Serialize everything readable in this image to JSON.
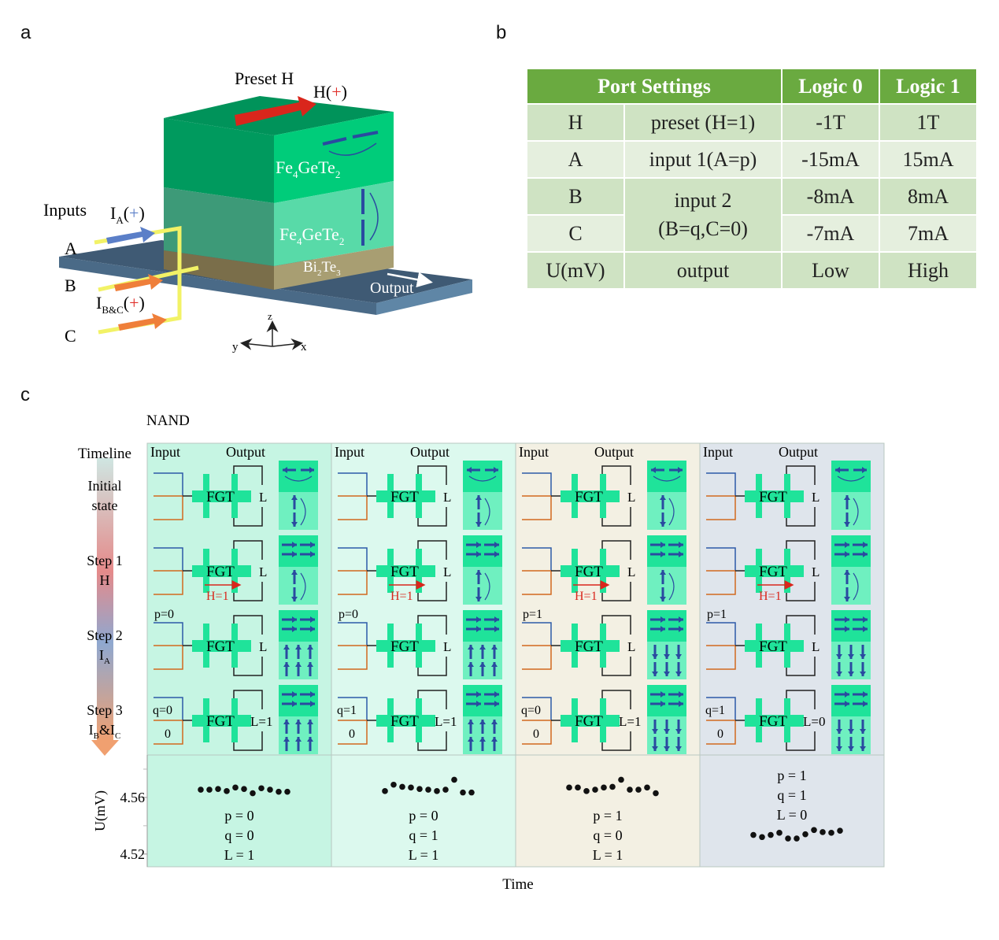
{
  "panels": {
    "a": "a",
    "b": "b",
    "c": "c"
  },
  "device": {
    "preset_label": "Preset H",
    "h_label": "H(",
    "h_sign": "+",
    "h_close": ")",
    "layer_top": "Fe",
    "layer_top_sub1": "4",
    "layer_top_mid": "GeTe",
    "layer_top_sub2": "2",
    "layer_mid": "Fe",
    "layer_mid_sub1": "4",
    "layer_mid_mid": "GeTe",
    "layer_mid_sub2": "2",
    "layer_bottom": "Bi",
    "layer_bottom_sub1": "2",
    "layer_bottom_mid": "Te",
    "layer_bottom_sub2": "3",
    "inputs_label": "Inputs",
    "ia_label": "I",
    "ia_sub": "A",
    "ia_sign": "+",
    "ibc_label": "I",
    "ibc_sub": "B&C",
    "ibc_sign": "+",
    "port_a": "A",
    "port_b": "B",
    "port_c": "C",
    "output_label": "Output",
    "axis_z": "z",
    "axis_y": "y",
    "axis_x": "x",
    "colors": {
      "preset_arrow": "#d9261c",
      "ia_arrow": "#5b7fc8",
      "ibc_arrow": "#ef7f3a",
      "wire": "#f2f266",
      "substrate": "#41607c"
    }
  },
  "table": {
    "headers": [
      "Port Settings",
      "Logic 0",
      "Logic 1"
    ],
    "rows": [
      {
        "port": "H",
        "setting": "preset (H=1)",
        "logic0": "-1T",
        "logic1": "1T"
      },
      {
        "port": "A",
        "setting": "input 1(A=p)",
        "logic0": "-15mA",
        "logic1": "15mA"
      },
      {
        "port": "B",
        "setting": "input 2",
        "logic0": "-8mA",
        "logic1": "8mA"
      },
      {
        "port": "C",
        "setting": "(B=q,C=0)",
        "logic0": "-7mA",
        "logic1": "7mA"
      },
      {
        "port": "U(mV)",
        "setting": "output",
        "logic0": "Low",
        "logic1": "High"
      }
    ],
    "colors": {
      "header": "#6aaa40",
      "row_dark": "#cfe3c3",
      "row_light": "#e5efde"
    }
  },
  "nand": {
    "title": "NAND",
    "timeline_label": "Timeline",
    "steps": [
      {
        "line1": "Initial",
        "line2": "state"
      },
      {
        "line1": "Step 1",
        "line2": "H"
      },
      {
        "line1": "Step 2",
        "line2": "I",
        "line2_sub": "A"
      },
      {
        "line1": "Step 3",
        "line2": "I",
        "line2_sub": "B",
        "line2_mid": "&I",
        "line2_sub2": "C"
      }
    ],
    "input_label": "Input",
    "output_label": "Output",
    "device_label": "FGT",
    "output_low": "L",
    "h_field_label": "H=1",
    "zero_label": "0",
    "columns": [
      {
        "p": "p=0",
        "q": "q=0",
        "out": "L=1",
        "pv": "p = 0",
        "qv": "q = 0",
        "lv": "L = 1",
        "bg": "#c6f5e3",
        "magnet_down": false,
        "final_down": false
      },
      {
        "p": "p=0",
        "q": "q=1",
        "out": "L=1",
        "pv": "p = 0",
        "qv": "q = 1",
        "lv": "L = 1",
        "bg": "#dcf9ee",
        "magnet_down": false,
        "final_down": false
      },
      {
        "p": "p=1",
        "q": "q=0",
        "out": "L=1",
        "pv": "p = 1",
        "qv": "q = 0",
        "lv": "L = 1",
        "bg": "#f3f0e3",
        "magnet_down": true,
        "final_down": true
      },
      {
        "p": "p=1",
        "q": "q=1",
        "out": "L=0",
        "pv": "p = 1",
        "qv": "q = 1",
        "lv": "L = 0",
        "bg": "#dfe5ec",
        "magnet_down": true,
        "final_down": true
      }
    ]
  },
  "chart_data": {
    "type": "scatter",
    "xlabel": "Time",
    "ylabel": "U(mV)",
    "yticks": [
      "4.52",
      "4.56"
    ],
    "ylim": [
      4.511,
      4.59
    ],
    "series": [
      {
        "values": [
          4.5655,
          4.5655,
          4.566,
          4.5645,
          4.567,
          4.566,
          4.563,
          4.5665,
          4.5655,
          4.564,
          4.564
        ]
      },
      {
        "values": [
          4.5645,
          4.569,
          4.5675,
          4.567,
          4.566,
          4.5655,
          4.5645,
          4.5655,
          4.5725,
          4.5635,
          4.5635
        ]
      },
      {
        "values": [
          4.567,
          4.567,
          4.5645,
          4.5655,
          4.567,
          4.5675,
          4.5725,
          4.5655,
          4.5655,
          4.567,
          4.563
        ]
      },
      {
        "values": [
          4.5335,
          4.532,
          4.5335,
          4.535,
          4.531,
          4.531,
          4.534,
          4.537,
          4.5355,
          4.535,
          4.5365
        ]
      }
    ]
  }
}
